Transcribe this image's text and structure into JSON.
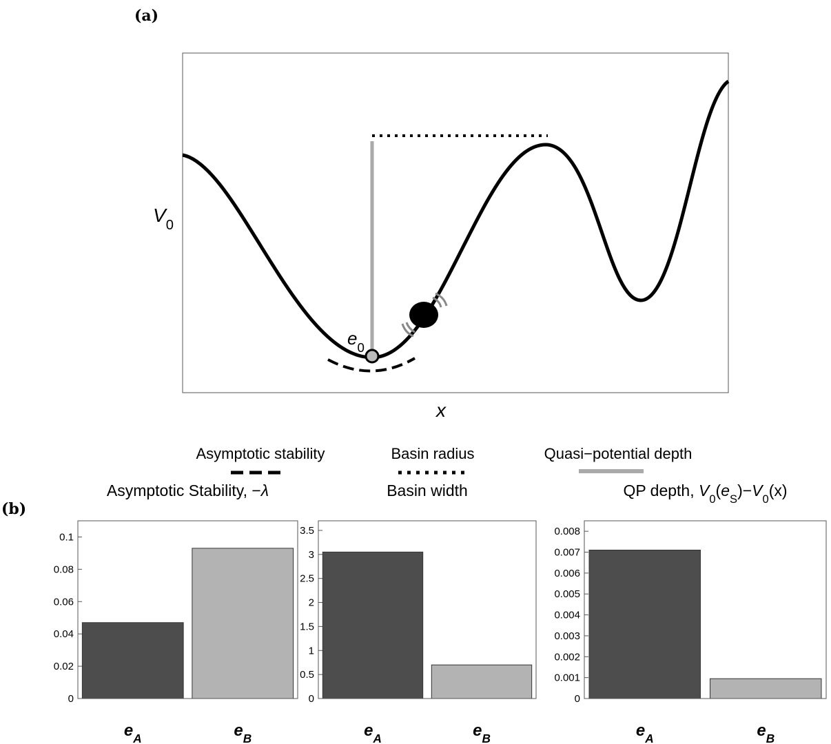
{
  "panel_a": {
    "label": "(a)",
    "y_label": [
      {
        "text": "V",
        "style": "italic"
      },
      {
        "text": "0",
        "style": "sub"
      }
    ],
    "x_label": "x",
    "point_label": [
      {
        "text": "e",
        "style": "italic"
      },
      {
        "text": "0",
        "style": "sub"
      }
    ],
    "legend": [
      "Asymptotic stability",
      "Basin radius",
      "Quasi−potential depth"
    ]
  },
  "panel_b": {
    "label": "(b)"
  },
  "chart_data": [
    {
      "type": "bar",
      "title": [
        {
          "text": "Asymptotic Stability, −"
        },
        {
          "text": "λ",
          "style": "italic"
        }
      ],
      "categories": [
        [
          {
            "text": "e"
          },
          {
            "text": "A",
            "style": "sub"
          }
        ],
        [
          {
            "text": "e"
          },
          {
            "text": "B",
            "style": "sub"
          }
        ]
      ],
      "values": [
        0.047,
        0.093
      ],
      "colors": [
        "#4d4d4d",
        "#b3b3b3"
      ],
      "ylim": [
        0,
        0.11
      ],
      "yticks": [
        0,
        0.02,
        0.04,
        0.06,
        0.08,
        0.1
      ]
    },
    {
      "type": "bar",
      "title": [
        {
          "text": "Basin width"
        }
      ],
      "categories": [
        [
          {
            "text": "e"
          },
          {
            "text": "A",
            "style": "sub"
          }
        ],
        [
          {
            "text": "e"
          },
          {
            "text": "B",
            "style": "sub"
          }
        ]
      ],
      "values": [
        3.05,
        0.7
      ],
      "colors": [
        "#4d4d4d",
        "#b3b3b3"
      ],
      "ylim": [
        0,
        3.7
      ],
      "yticks": [
        0,
        0.5,
        1,
        1.5,
        2,
        2.5,
        3,
        3.5
      ]
    },
    {
      "type": "bar",
      "title": [
        {
          "text": "QP depth, "
        },
        {
          "text": "V",
          "style": "italic"
        },
        {
          "text": "0",
          "style": "sub"
        },
        {
          "text": "("
        },
        {
          "text": "e",
          "style": "italic"
        },
        {
          "text": "S",
          "style": "sub"
        },
        {
          "text": ")−"
        },
        {
          "text": "V",
          "style": "italic"
        },
        {
          "text": "0",
          "style": "sub"
        },
        {
          "text": "(x)"
        }
      ],
      "categories": [
        [
          {
            "text": "e"
          },
          {
            "text": "A",
            "style": "sub"
          }
        ],
        [
          {
            "text": "e"
          },
          {
            "text": "B",
            "style": "sub"
          }
        ]
      ],
      "values": [
        0.0071,
        0.00095
      ],
      "colors": [
        "#4d4d4d",
        "#b3b3b3"
      ],
      "ylim": [
        0,
        0.0085
      ],
      "yticks": [
        0,
        0.001,
        0.002,
        0.003,
        0.004,
        0.005,
        0.006,
        0.007,
        0.008
      ]
    }
  ]
}
